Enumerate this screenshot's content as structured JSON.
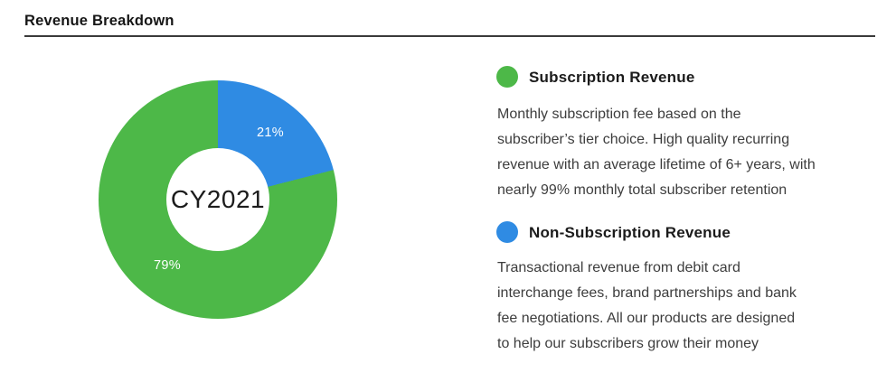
{
  "header": {
    "title": "Revenue Breakdown"
  },
  "chart_data": {
    "type": "pie",
    "variant": "donut",
    "title": "Revenue Breakdown",
    "center_label": "CY2021",
    "rotation": "first slice starts at 12 o'clock, clockwise",
    "legend_position": "right",
    "slices": [
      {
        "label": "Non-Subscription Revenue",
        "value": 21,
        "display": "21%",
        "color": "#2F8BE3"
      },
      {
        "label": "Subscription Revenue",
        "value": 79,
        "display": "79%",
        "color": "#4DB848"
      }
    ]
  },
  "legend": {
    "items": [
      {
        "title": "Subscription Revenue",
        "color": "#4DB848",
        "lines": [
          "Monthly subscription fee based on the",
          "subscriber’s tier choice. High quality recurring",
          "revenue with an average lifetime of 6+ years, with",
          "nearly 99% monthly total subscriber retention"
        ]
      },
      {
        "title": "Non-Subscription Revenue",
        "color": "#2F8BE3",
        "lines": [
          "Transactional revenue from debit card",
          "interchange fees, brand partnerships and bank",
          "fee negotiations. All our products are designed",
          "to help our subscribers grow their money"
        ]
      }
    ]
  }
}
